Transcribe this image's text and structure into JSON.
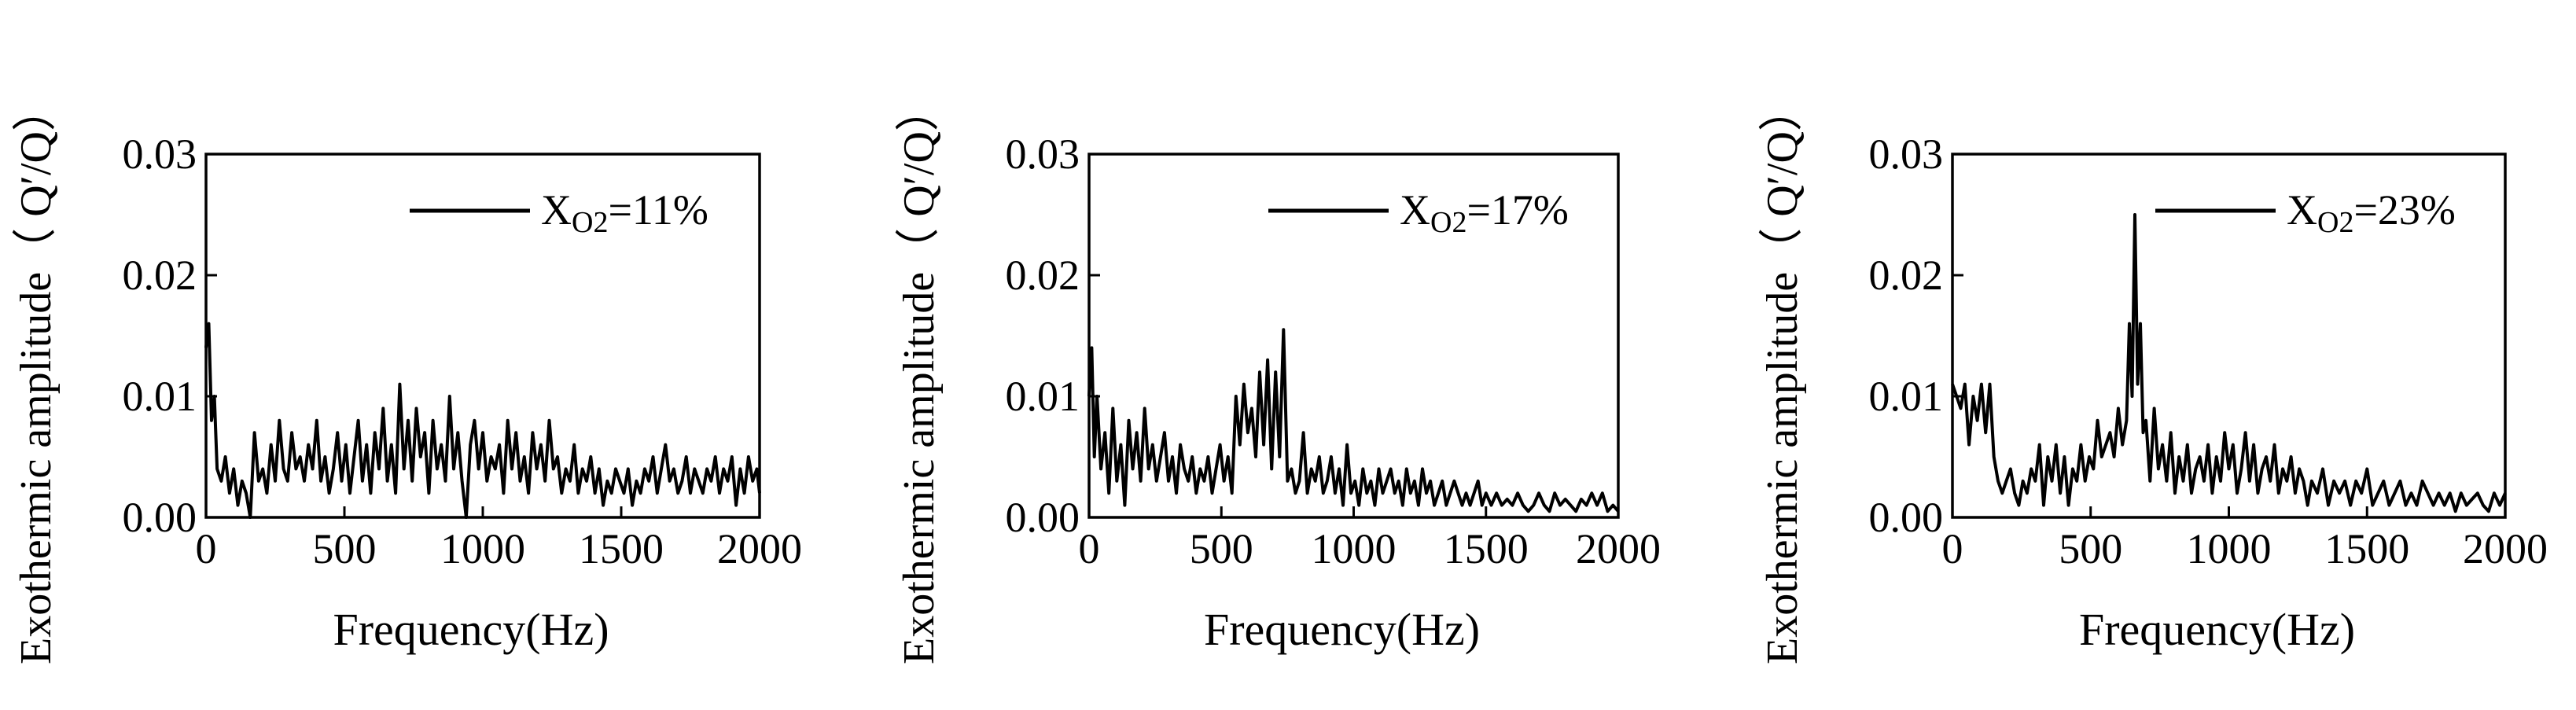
{
  "chart_data": [
    {
      "type": "line",
      "xlabel": "Frequency(Hz)",
      "ylabel": "Exothermic amplitude（ Q′/Q）",
      "xlim": [
        0,
        2000
      ],
      "ylim": [
        0,
        0.03
      ],
      "xticks": [
        "0",
        "500",
        "1000",
        "1500",
        "2000"
      ],
      "yticks": [
        "0.00",
        "0.01",
        "0.02",
        "0.03"
      ],
      "legend_position": "top-right",
      "series": [
        {
          "name": "X_O2=11%",
          "legend_main": "X",
          "legend_sub": "O2",
          "legend_tail": "=11%",
          "color": "#000000",
          "x": [
            0,
            10,
            20,
            30,
            40,
            55,
            70,
            85,
            100,
            115,
            130,
            145,
            160,
            175,
            190,
            205,
            220,
            235,
            250,
            265,
            280,
            295,
            310,
            325,
            340,
            355,
            370,
            385,
            400,
            415,
            430,
            445,
            460,
            475,
            490,
            505,
            520,
            535,
            550,
            565,
            580,
            595,
            610,
            625,
            640,
            655,
            670,
            685,
            700,
            715,
            730,
            745,
            760,
            775,
            790,
            805,
            820,
            835,
            850,
            865,
            880,
            895,
            910,
            925,
            940,
            955,
            970,
            985,
            1000,
            1015,
            1030,
            1045,
            1060,
            1075,
            1090,
            1105,
            1120,
            1135,
            1150,
            1165,
            1180,
            1195,
            1210,
            1225,
            1240,
            1255,
            1270,
            1285,
            1300,
            1315,
            1330,
            1345,
            1360,
            1375,
            1390,
            1405,
            1420,
            1435,
            1450,
            1465,
            1480,
            1495,
            1510,
            1525,
            1540,
            1555,
            1570,
            1585,
            1600,
            1615,
            1630,
            1645,
            1660,
            1675,
            1690,
            1705,
            1720,
            1735,
            1750,
            1765,
            1780,
            1795,
            1810,
            1825,
            1840,
            1855,
            1870,
            1885,
            1900,
            1915,
            1930,
            1945,
            1960,
            1975,
            1990,
            2000
          ],
          "y": [
            0.014,
            0.016,
            0.008,
            0.01,
            0.004,
            0.003,
            0.005,
            0.002,
            0.004,
            0.001,
            0.003,
            0.002,
            0.0,
            0.007,
            0.003,
            0.004,
            0.002,
            0.006,
            0.003,
            0.008,
            0.004,
            0.003,
            0.007,
            0.004,
            0.005,
            0.003,
            0.006,
            0.004,
            0.008,
            0.003,
            0.005,
            0.002,
            0.004,
            0.007,
            0.003,
            0.006,
            0.002,
            0.005,
            0.008,
            0.003,
            0.006,
            0.002,
            0.007,
            0.004,
            0.009,
            0.003,
            0.006,
            0.002,
            0.011,
            0.004,
            0.008,
            0.003,
            0.009,
            0.005,
            0.007,
            0.002,
            0.008,
            0.004,
            0.006,
            0.003,
            0.01,
            0.004,
            0.007,
            0.003,
            0.0,
            0.006,
            0.008,
            0.004,
            0.007,
            0.003,
            0.005,
            0.004,
            0.006,
            0.002,
            0.008,
            0.004,
            0.007,
            0.003,
            0.005,
            0.002,
            0.007,
            0.004,
            0.006,
            0.003,
            0.008,
            0.004,
            0.005,
            0.002,
            0.004,
            0.003,
            0.006,
            0.002,
            0.004,
            0.003,
            0.005,
            0.002,
            0.004,
            0.001,
            0.003,
            0.002,
            0.004,
            0.003,
            0.002,
            0.004,
            0.001,
            0.003,
            0.002,
            0.004,
            0.003,
            0.005,
            0.002,
            0.004,
            0.006,
            0.003,
            0.004,
            0.002,
            0.003,
            0.005,
            0.002,
            0.004,
            0.003,
            0.002,
            0.004,
            0.003,
            0.005,
            0.002,
            0.004,
            0.003,
            0.005,
            0.001,
            0.004,
            0.002,
            0.005,
            0.003,
            0.004,
            0.002
          ]
        }
      ]
    },
    {
      "type": "line",
      "xlabel": "Frequency(Hz)",
      "ylabel": "Exothermic amplitude（ Q′/Q）",
      "xlim": [
        0,
        2000
      ],
      "ylim": [
        0,
        0.03
      ],
      "xticks": [
        "0",
        "500",
        "1000",
        "1500",
        "2000"
      ],
      "yticks": [
        "0.00",
        "0.01",
        "0.02",
        "0.03"
      ],
      "legend_position": "top-right",
      "series": [
        {
          "name": "X_O2=17%",
          "legend_main": "X",
          "legend_sub": "O2",
          "legend_tail": "=17%",
          "color": "#000000",
          "x": [
            0,
            10,
            20,
            30,
            45,
            60,
            75,
            90,
            105,
            120,
            135,
            150,
            165,
            180,
            195,
            210,
            225,
            240,
            255,
            270,
            285,
            300,
            315,
            330,
            345,
            360,
            375,
            390,
            405,
            420,
            435,
            450,
            465,
            480,
            495,
            510,
            525,
            540,
            555,
            570,
            585,
            600,
            615,
            630,
            645,
            660,
            675,
            690,
            705,
            720,
            735,
            750,
            765,
            780,
            795,
            810,
            825,
            840,
            855,
            870,
            885,
            900,
            915,
            930,
            945,
            960,
            975,
            990,
            1005,
            1020,
            1035,
            1050,
            1065,
            1080,
            1095,
            1110,
            1125,
            1140,
            1155,
            1170,
            1185,
            1200,
            1215,
            1230,
            1245,
            1260,
            1275,
            1290,
            1305,
            1320,
            1335,
            1350,
            1365,
            1380,
            1395,
            1410,
            1425,
            1440,
            1455,
            1470,
            1485,
            1500,
            1520,
            1540,
            1560,
            1580,
            1600,
            1620,
            1640,
            1660,
            1680,
            1700,
            1720,
            1740,
            1760,
            1780,
            1800,
            1820,
            1840,
            1860,
            1880,
            1900,
            1920,
            1940,
            1960,
            1980,
            2000
          ],
          "y": [
            0.01,
            0.014,
            0.005,
            0.01,
            0.004,
            0.007,
            0.002,
            0.009,
            0.003,
            0.006,
            0.001,
            0.008,
            0.004,
            0.007,
            0.003,
            0.009,
            0.004,
            0.006,
            0.003,
            0.005,
            0.007,
            0.003,
            0.005,
            0.002,
            0.006,
            0.004,
            0.003,
            0.005,
            0.002,
            0.004,
            0.003,
            0.005,
            0.002,
            0.004,
            0.006,
            0.003,
            0.005,
            0.002,
            0.01,
            0.006,
            0.011,
            0.007,
            0.009,
            0.005,
            0.012,
            0.006,
            0.013,
            0.004,
            0.012,
            0.005,
            0.0155,
            0.003,
            0.004,
            0.002,
            0.003,
            0.007,
            0.002,
            0.004,
            0.003,
            0.005,
            0.002,
            0.003,
            0.005,
            0.002,
            0.004,
            0.001,
            0.006,
            0.002,
            0.003,
            0.001,
            0.004,
            0.002,
            0.003,
            0.001,
            0.004,
            0.002,
            0.003,
            0.004,
            0.002,
            0.003,
            0.001,
            0.004,
            0.002,
            0.003,
            0.001,
            0.004,
            0.002,
            0.003,
            0.001,
            0.002,
            0.003,
            0.001,
            0.002,
            0.003,
            0.002,
            0.001,
            0.002,
            0.001,
            0.002,
            0.003,
            0.001,
            0.002,
            0.001,
            0.002,
            0.001,
            0.0015,
            0.001,
            0.002,
            0.001,
            0.0005,
            0.001,
            0.002,
            0.001,
            0.0005,
            0.002,
            0.001,
            0.0015,
            0.001,
            0.0005,
            0.0015,
            0.001,
            0.002,
            0.001,
            0.002,
            0.0005,
            0.001,
            0.0005
          ]
        }
      ]
    },
    {
      "type": "line",
      "xlabel": "Frequency(Hz)",
      "ylabel": "Exothermic amplitude（ Q′/Q）",
      "xlim": [
        0,
        2000
      ],
      "ylim": [
        0,
        0.03
      ],
      "xticks": [
        "0",
        "500",
        "1000",
        "1500",
        "2000"
      ],
      "yticks": [
        "0.00",
        "0.01",
        "0.02",
        "0.03"
      ],
      "legend_position": "top-right",
      "series": [
        {
          "name": "X_O2=23%",
          "legend_main": "X",
          "legend_sub": "O2",
          "legend_tail": "=23%",
          "color": "#000000",
          "x": [
            0,
            15,
            30,
            45,
            60,
            75,
            90,
            105,
            120,
            135,
            150,
            165,
            180,
            195,
            210,
            225,
            240,
            255,
            270,
            285,
            300,
            315,
            330,
            345,
            360,
            375,
            390,
            405,
            420,
            435,
            450,
            465,
            480,
            495,
            510,
            525,
            540,
            555,
            570,
            585,
            600,
            615,
            630,
            640,
            650,
            660,
            670,
            680,
            690,
            700,
            715,
            730,
            745,
            760,
            775,
            790,
            805,
            820,
            835,
            850,
            865,
            880,
            895,
            910,
            925,
            940,
            955,
            970,
            985,
            1000,
            1015,
            1030,
            1045,
            1060,
            1075,
            1090,
            1105,
            1120,
            1135,
            1150,
            1165,
            1180,
            1195,
            1210,
            1225,
            1240,
            1255,
            1270,
            1285,
            1300,
            1320,
            1340,
            1360,
            1380,
            1400,
            1420,
            1440,
            1460,
            1480,
            1500,
            1520,
            1540,
            1560,
            1580,
            1600,
            1620,
            1640,
            1660,
            1680,
            1700,
            1720,
            1740,
            1760,
            1780,
            1800,
            1820,
            1840,
            1860,
            1880,
            1900,
            1920,
            1940,
            1960,
            1980,
            2000
          ],
          "y": [
            0.011,
            0.01,
            0.009,
            0.011,
            0.006,
            0.01,
            0.008,
            0.011,
            0.007,
            0.011,
            0.005,
            0.003,
            0.002,
            0.003,
            0.004,
            0.002,
            0.001,
            0.003,
            0.002,
            0.004,
            0.003,
            0.006,
            0.001,
            0.005,
            0.003,
            0.006,
            0.002,
            0.005,
            0.001,
            0.004,
            0.003,
            0.006,
            0.003,
            0.005,
            0.004,
            0.008,
            0.005,
            0.006,
            0.007,
            0.005,
            0.009,
            0.006,
            0.008,
            0.016,
            0.01,
            0.025,
            0.011,
            0.016,
            0.007,
            0.008,
            0.003,
            0.009,
            0.004,
            0.006,
            0.003,
            0.007,
            0.002,
            0.005,
            0.003,
            0.006,
            0.002,
            0.004,
            0.005,
            0.003,
            0.006,
            0.002,
            0.005,
            0.003,
            0.007,
            0.004,
            0.006,
            0.002,
            0.004,
            0.007,
            0.003,
            0.006,
            0.002,
            0.004,
            0.005,
            0.003,
            0.006,
            0.002,
            0.004,
            0.003,
            0.005,
            0.002,
            0.004,
            0.003,
            0.001,
            0.003,
            0.002,
            0.004,
            0.001,
            0.003,
            0.002,
            0.003,
            0.001,
            0.003,
            0.002,
            0.004,
            0.001,
            0.002,
            0.003,
            0.001,
            0.002,
            0.003,
            0.001,
            0.002,
            0.001,
            0.003,
            0.002,
            0.001,
            0.002,
            0.001,
            0.002,
            0.0005,
            0.002,
            0.001,
            0.0015,
            0.002,
            0.001,
            0.0005,
            0.002,
            0.001,
            0.002
          ]
        }
      ]
    }
  ]
}
